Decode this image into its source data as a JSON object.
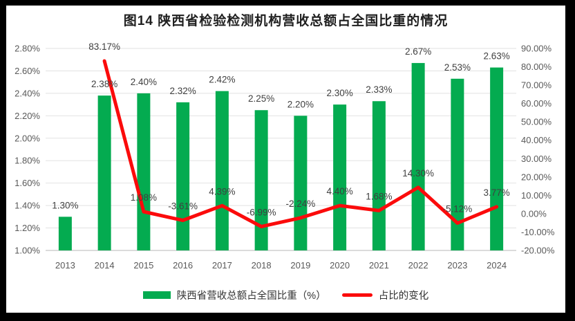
{
  "title": "图14  陕西省检验检测机构营收总额占全国比重的情况",
  "legend": {
    "bar_label": "陕西省营收总额占全国比重（%）",
    "line_label": "占比的变化"
  },
  "colors": {
    "frame": "#000000",
    "background": "#FFFFFF",
    "bar": "#04AB50",
    "line": "#FB0B0B",
    "grid": "#E2E2E2",
    "axis_line": "#CFCFCF",
    "tick_text": "#595959",
    "data_label": "#3F3F3F",
    "title_text": "#1F1F1F"
  },
  "chart_data": {
    "type": "combo",
    "title": "图14  陕西省检验检测机构营收总额占全国比重的情况",
    "categories": [
      "2013",
      "2014",
      "2015",
      "2016",
      "2017",
      "2018",
      "2019",
      "2020",
      "2021",
      "2022",
      "2023",
      "2024"
    ],
    "series": [
      {
        "name": "陕西省营收总额占全国比重（%）",
        "type": "bar",
        "axis": "left",
        "values": [
          1.3,
          2.38,
          2.4,
          2.32,
          2.42,
          2.25,
          2.2,
          2.3,
          2.33,
          2.67,
          2.53,
          2.63
        ],
        "labels": [
          "1.30%",
          "2.38%",
          "2.40%",
          "2.32%",
          "2.42%",
          "2.25%",
          "2.20%",
          "2.30%",
          "2.33%",
          "2.67%",
          "2.53%",
          "2.63%"
        ]
      },
      {
        "name": "占比的变化",
        "type": "line",
        "axis": "right",
        "values": [
          null,
          83.17,
          1.08,
          -3.61,
          4.39,
          -6.99,
          -2.24,
          4.4,
          1.68,
          14.3,
          -5.12,
          3.77
        ],
        "labels": [
          null,
          "83.17%",
          "1.08%",
          "-3.61%",
          "4.39%",
          "-6.99%",
          "-2.24%",
          "4.40%",
          "1.68%",
          "14.30%",
          "-5.12%",
          "3.77%"
        ]
      }
    ],
    "left_axis": {
      "min": 1.0,
      "max": 2.8,
      "step": 0.2,
      "ticks": [
        "1.00%",
        "1.20%",
        "1.40%",
        "1.60%",
        "1.80%",
        "2.00%",
        "2.20%",
        "2.40%",
        "2.60%",
        "2.80%"
      ]
    },
    "right_axis": {
      "min": -20,
      "max": 90,
      "step": 10,
      "ticks": [
        "-20.00%",
        "-10.00%",
        "0.00%",
        "10.00%",
        "20.00%",
        "30.00%",
        "40.00%",
        "50.00%",
        "60.00%",
        "70.00%",
        "80.00%",
        "90.00%"
      ]
    },
    "grid": true,
    "legend_position": "bottom"
  }
}
